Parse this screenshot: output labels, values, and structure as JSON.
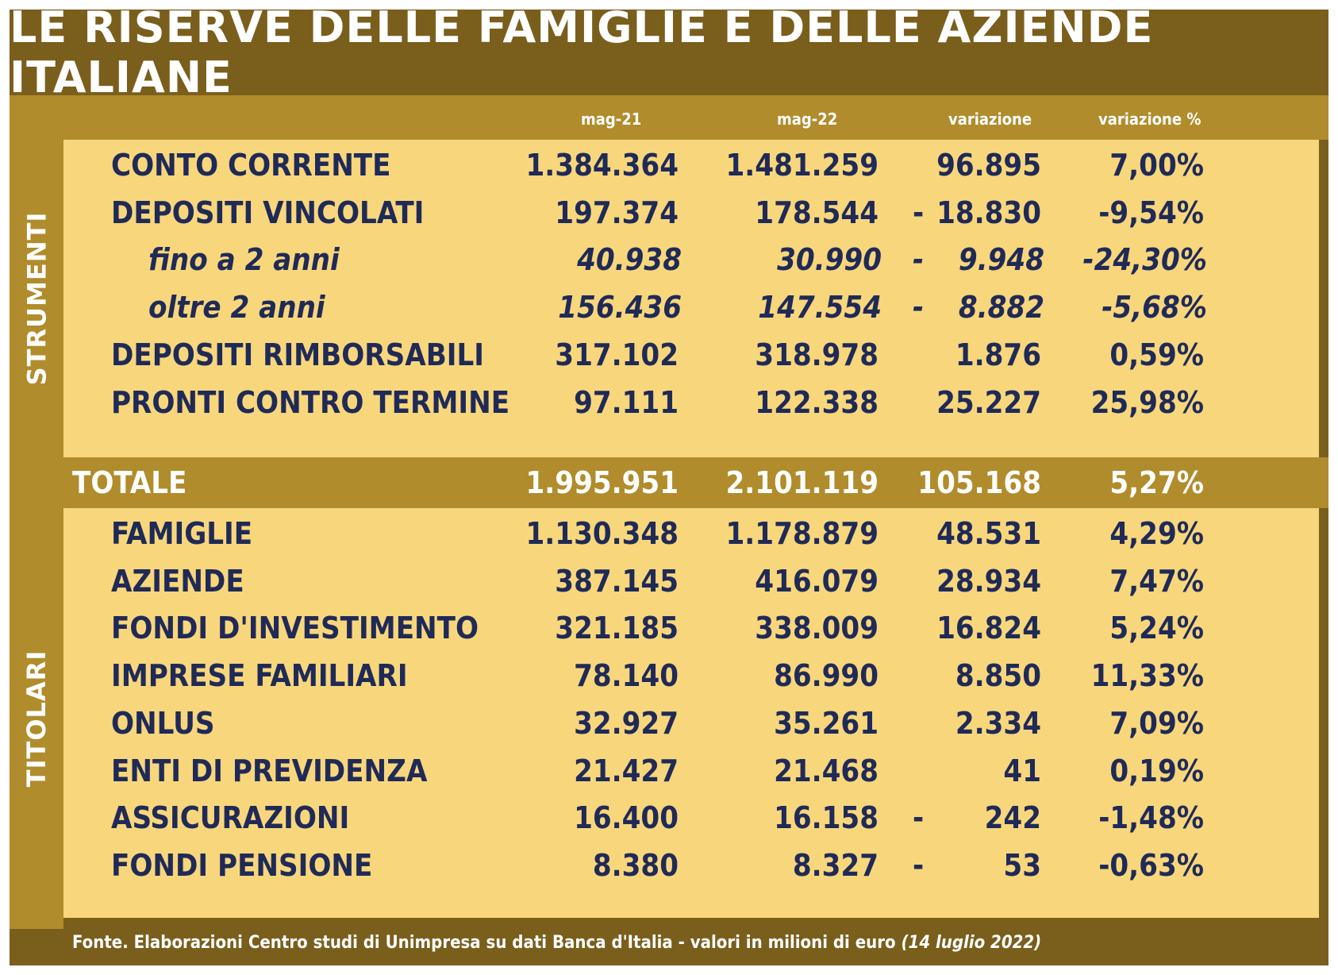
{
  "title": "LE RISERVE DELLE FAMIGLIE E DELLE AZIENDE ITALIANE",
  "side_labels": {
    "strumenti": "STRUMENTI",
    "titolari": "TITOLARI"
  },
  "footer": {
    "source": "Fonte. Elaborazioni Centro studi di Unimpresa su dati Banca d'Italia - valori in milioni di euro",
    "date": "(14 luglio 2022)"
  },
  "colors": {
    "frame": "#7a5e1c",
    "band": "#b18c2c",
    "panel": "#f8d67c",
    "text_dark": "#1f2a57",
    "text_light": "#ffffff"
  },
  "chart_data": {
    "type": "table",
    "title": "LE RISERVE DELLE FAMIGLIE E DELLE AZIENDE ITALIANE",
    "columns": [
      "mag-21",
      "mag-22",
      "variazione",
      "variazione %"
    ],
    "sections": [
      {
        "name": "STRUMENTI",
        "rows": [
          {
            "label": "CONTO CORRENTE",
            "mag21": "1.384.364",
            "mag22": "1.481.259",
            "sign": "",
            "var": "96.895",
            "var_pct": "7,00%",
            "sub": false
          },
          {
            "label": "DEPOSITI VINCOLATI",
            "mag21": "197.374",
            "mag22": "178.544",
            "sign": "-",
            "var": "18.830",
            "var_pct": "-9,54%",
            "sub": false
          },
          {
            "label": "fino a 2 anni",
            "mag21": "40.938",
            "mag22": "30.990",
            "sign": "-",
            "var": "9.948",
            "var_pct": "-24,30%",
            "sub": true
          },
          {
            "label": "oltre 2 anni",
            "mag21": "156.436",
            "mag22": "147.554",
            "sign": "-",
            "var": "8.882",
            "var_pct": "-5,68%",
            "sub": true
          },
          {
            "label": "DEPOSITI RIMBORSABILI",
            "mag21": "317.102",
            "mag22": "318.978",
            "sign": "",
            "var": "1.876",
            "var_pct": "0,59%",
            "sub": false
          },
          {
            "label": "PRONTI CONTRO TERMINE",
            "mag21": "97.111",
            "mag22": "122.338",
            "sign": "",
            "var": "25.227",
            "var_pct": "25,98%",
            "sub": false
          }
        ]
      },
      {
        "name": "TITOLARI",
        "rows": [
          {
            "label": "FAMIGLIE",
            "mag21": "1.130.348",
            "mag22": "1.178.879",
            "sign": "",
            "var": "48.531",
            "var_pct": "4,29%",
            "sub": false
          },
          {
            "label": "AZIENDE",
            "mag21": "387.145",
            "mag22": "416.079",
            "sign": "",
            "var": "28.934",
            "var_pct": "7,47%",
            "sub": false
          },
          {
            "label": "FONDI D'INVESTIMENTO",
            "mag21": "321.185",
            "mag22": "338.009",
            "sign": "",
            "var": "16.824",
            "var_pct": "5,24%",
            "sub": false
          },
          {
            "label": "IMPRESE FAMILIARI",
            "mag21": "78.140",
            "mag22": "86.990",
            "sign": "",
            "var": "8.850",
            "var_pct": "11,33%",
            "sub": false
          },
          {
            "label": "ONLUS",
            "mag21": "32.927",
            "mag22": "35.261",
            "sign": "",
            "var": "2.334",
            "var_pct": "7,09%",
            "sub": false
          },
          {
            "label": "ENTI DI PREVIDENZA",
            "mag21": "21.427",
            "mag22": "21.468",
            "sign": "",
            "var": "41",
            "var_pct": "0,19%",
            "sub": false
          },
          {
            "label": "ASSICURAZIONI",
            "mag21": "16.400",
            "mag22": "16.158",
            "sign": "-",
            "var": "242",
            "var_pct": "-1,48%",
            "sub": false
          },
          {
            "label": "FONDI PENSIONE",
            "mag21": "8.380",
            "mag22": "8.327",
            "sign": "-",
            "var": "53",
            "var_pct": "-0,63%",
            "sub": false
          }
        ]
      }
    ],
    "total": {
      "label": "TOTALE",
      "mag21": "1.995.951",
      "mag22": "2.101.119",
      "sign": "",
      "var": "105.168",
      "var_pct": "5,27%"
    }
  }
}
